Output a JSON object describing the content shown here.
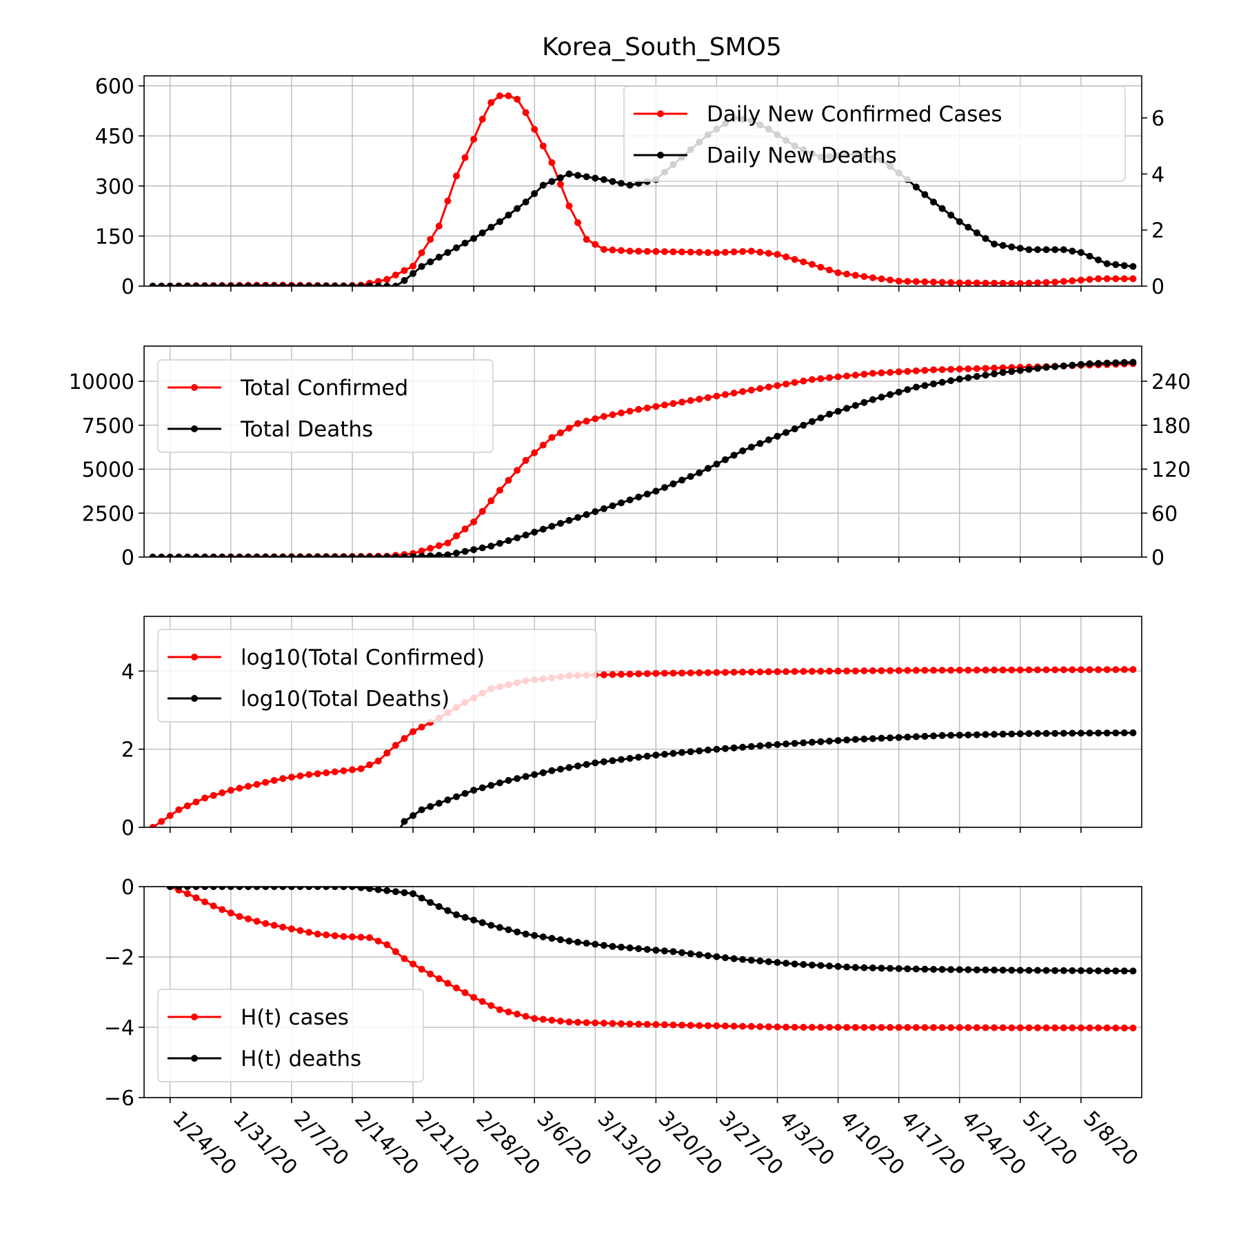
{
  "figure": {
    "title": "Korea_South_SMO5",
    "date_ticks": [
      "1/24/20",
      "1/31/20",
      "2/7/20",
      "2/14/20",
      "2/21/20",
      "2/28/20",
      "3/6/20",
      "3/13/20",
      "3/20/20",
      "3/27/20",
      "4/3/20",
      "4/10/20",
      "4/17/20",
      "4/24/20",
      "5/1/20",
      "5/8/20"
    ],
    "colors": {
      "cases": "#ff0000",
      "deaths": "#000000",
      "grid": "#b0b0b0"
    }
  },
  "chart_data": [
    {
      "type": "line",
      "title": "Korea_South_SMO5",
      "x_type": "date",
      "x_start": "2020-01-22",
      "x_end": "2020-05-14",
      "y_left": {
        "lim": [
          0,
          630
        ],
        "ticks": [
          0,
          150,
          300,
          450,
          600
        ],
        "labels": [
          "0",
          "150",
          "300",
          "450",
          "600"
        ]
      },
      "y_right": {
        "lim": [
          0,
          7.5
        ],
        "ticks": [
          0,
          2,
          4,
          6
        ],
        "labels": [
          "0",
          "2",
          "4",
          "6"
        ]
      },
      "legend": "top-right",
      "grid": true,
      "series": [
        {
          "name": "Daily New Confirmed Cases",
          "axis": "left",
          "color": "#ff0000",
          "points": [
            [
              "2020-01-22",
              0
            ],
            [
              "2020-01-30",
              2
            ],
            [
              "2020-02-06",
              3
            ],
            [
              "2020-02-13",
              1
            ],
            [
              "2020-02-15",
              3
            ],
            [
              "2020-02-18",
              20
            ],
            [
              "2020-02-21",
              60
            ],
            [
              "2020-02-24",
              180
            ],
            [
              "2020-02-26",
              330
            ],
            [
              "2020-02-28",
              440
            ],
            [
              "2020-02-29",
              500
            ],
            [
              "2020-03-01",
              550
            ],
            [
              "2020-03-02",
              570
            ],
            [
              "2020-03-03",
              570
            ],
            [
              "2020-03-04",
              560
            ],
            [
              "2020-03-05",
              520
            ],
            [
              "2020-03-06",
              470
            ],
            [
              "2020-03-08",
              370
            ],
            [
              "2020-03-10",
              240
            ],
            [
              "2020-03-12",
              140
            ],
            [
              "2020-03-14",
              110
            ],
            [
              "2020-03-17",
              105
            ],
            [
              "2020-03-24",
              102
            ],
            [
              "2020-03-27",
              100
            ],
            [
              "2020-03-31",
              105
            ],
            [
              "2020-04-03",
              95
            ],
            [
              "2020-04-07",
              65
            ],
            [
              "2020-04-10",
              40
            ],
            [
              "2020-04-14",
              25
            ],
            [
              "2020-04-17",
              15
            ],
            [
              "2020-04-24",
              10
            ],
            [
              "2020-05-01",
              8
            ],
            [
              "2020-05-05",
              12
            ],
            [
              "2020-05-10",
              22
            ],
            [
              "2020-05-14",
              22
            ]
          ]
        },
        {
          "name": "Daily New Deaths",
          "axis": "right",
          "color": "#000000",
          "points": [
            [
              "2020-01-22",
              0
            ],
            [
              "2020-02-19",
              0
            ],
            [
              "2020-02-20",
              0.2
            ],
            [
              "2020-02-22",
              0.7
            ],
            [
              "2020-02-25",
              1.2
            ],
            [
              "2020-02-28",
              1.7
            ],
            [
              "2020-03-02",
              2.3
            ],
            [
              "2020-03-05",
              3
            ],
            [
              "2020-03-07",
              3.6
            ],
            [
              "2020-03-10",
              4
            ],
            [
              "2020-03-14",
              3.8
            ],
            [
              "2020-03-17",
              3.6
            ],
            [
              "2020-03-20",
              3.8
            ],
            [
              "2020-03-23",
              4.6
            ],
            [
              "2020-03-26",
              5.4
            ],
            [
              "2020-03-29",
              6
            ],
            [
              "2020-03-31",
              5.9
            ],
            [
              "2020-04-02",
              5.6
            ],
            [
              "2020-04-05",
              5
            ],
            [
              "2020-04-08",
              4.6
            ],
            [
              "2020-04-12",
              4.7
            ],
            [
              "2020-04-15",
              4.5
            ],
            [
              "2020-04-18",
              3.8
            ],
            [
              "2020-04-21",
              3
            ],
            [
              "2020-04-24",
              2.3
            ],
            [
              "2020-04-28",
              1.5
            ],
            [
              "2020-05-02",
              1.3
            ],
            [
              "2020-05-06",
              1.3
            ],
            [
              "2020-05-08",
              1.2
            ],
            [
              "2020-05-11",
              0.8
            ],
            [
              "2020-05-14",
              0.7
            ]
          ]
        }
      ]
    },
    {
      "type": "line",
      "x_type": "date",
      "x_start": "2020-01-22",
      "x_end": "2020-05-14",
      "y_left": {
        "lim": [
          0,
          12000
        ],
        "ticks": [
          0,
          2500,
          5000,
          7500,
          10000
        ],
        "labels": [
          "0",
          "2500",
          "5000",
          "7500",
          "10000"
        ]
      },
      "y_right": {
        "lim": [
          0,
          288
        ],
        "ticks": [
          0,
          60,
          120,
          180,
          240
        ],
        "labels": [
          "0",
          "60",
          "120",
          "180",
          "240"
        ]
      },
      "legend": "upper-left",
      "grid": true,
      "series": [
        {
          "name": "Total Confirmed",
          "axis": "left",
          "color": "#ff0000",
          "points": [
            [
              "2020-01-22",
              0
            ],
            [
              "2020-02-13",
              30
            ],
            [
              "2020-02-18",
              50
            ],
            [
              "2020-02-21",
              200
            ],
            [
              "2020-02-25",
              800
            ],
            [
              "2020-02-28",
              2000
            ],
            [
              "2020-03-02",
              3800
            ],
            [
              "2020-03-05",
              5500
            ],
            [
              "2020-03-08",
              6800
            ],
            [
              "2020-03-11",
              7600
            ],
            [
              "2020-03-14",
              8000
            ],
            [
              "2020-03-18",
              8400
            ],
            [
              "2020-03-24",
              8900
            ],
            [
              "2020-03-31",
              9500
            ],
            [
              "2020-04-07",
              10100
            ],
            [
              "2020-04-14",
              10450
            ],
            [
              "2020-04-21",
              10650
            ],
            [
              "2020-04-28",
              10750
            ],
            [
              "2020-05-05",
              10850
            ],
            [
              "2020-05-14",
              11000
            ]
          ]
        },
        {
          "name": "Total Deaths",
          "axis": "right",
          "color": "#000000",
          "points": [
            [
              "2020-01-22",
              0
            ],
            [
              "2020-02-20",
              0
            ],
            [
              "2020-02-25",
              3
            ],
            [
              "2020-03-01",
              15
            ],
            [
              "2020-03-05",
              30
            ],
            [
              "2020-03-10",
              50
            ],
            [
              "2020-03-15",
              70
            ],
            [
              "2020-03-20",
              90
            ],
            [
              "2020-03-25",
              115
            ],
            [
              "2020-03-30",
              145
            ],
            [
              "2020-04-04",
              170
            ],
            [
              "2020-04-09",
              195
            ],
            [
              "2020-04-14",
              215
            ],
            [
              "2020-04-19",
              232
            ],
            [
              "2020-04-24",
              243
            ],
            [
              "2020-04-29",
              252
            ],
            [
              "2020-05-04",
              259
            ],
            [
              "2020-05-09",
              264
            ],
            [
              "2020-05-14",
              266
            ]
          ]
        }
      ]
    },
    {
      "type": "line",
      "x_type": "date",
      "x_start": "2020-01-22",
      "x_end": "2020-05-14",
      "y_left": {
        "lim": [
          0,
          5.4
        ],
        "ticks": [
          0,
          2,
          4
        ],
        "labels": [
          "0",
          "2",
          "4"
        ]
      },
      "legend": "upper-left",
      "grid": true,
      "series": [
        {
          "name": "log10(Total Confirmed)",
          "axis": "left",
          "color": "#ff0000",
          "points": [
            [
              "2020-01-22",
              0
            ],
            [
              "2020-01-25",
              0.45
            ],
            [
              "2020-01-28",
              0.75
            ],
            [
              "2020-01-31",
              0.95
            ],
            [
              "2020-02-03",
              1.1
            ],
            [
              "2020-02-06",
              1.25
            ],
            [
              "2020-02-09",
              1.35
            ],
            [
              "2020-02-12",
              1.42
            ],
            [
              "2020-02-15",
              1.5
            ],
            [
              "2020-02-17",
              1.7
            ],
            [
              "2020-02-19",
              2.1
            ],
            [
              "2020-02-21",
              2.45
            ],
            [
              "2020-02-24",
              2.8
            ],
            [
              "2020-02-27",
              3.2
            ],
            [
              "2020-03-01",
              3.55
            ],
            [
              "2020-03-05",
              3.75
            ],
            [
              "2020-03-10",
              3.88
            ],
            [
              "2020-03-20",
              3.94
            ],
            [
              "2020-04-01",
              3.98
            ],
            [
              "2020-04-20",
              4.02
            ],
            [
              "2020-05-14",
              4.04
            ]
          ]
        },
        {
          "name": "log10(Total Deaths)",
          "axis": "left",
          "color": "#000000",
          "points": [
            [
              "2020-02-19",
              -0.2
            ],
            [
              "2020-02-20",
              0.15
            ],
            [
              "2020-02-22",
              0.45
            ],
            [
              "2020-02-25",
              0.7
            ],
            [
              "2020-02-28",
              0.95
            ],
            [
              "2020-03-03",
              1.2
            ],
            [
              "2020-03-08",
              1.45
            ],
            [
              "2020-03-13",
              1.65
            ],
            [
              "2020-03-20",
              1.85
            ],
            [
              "2020-03-27",
              2.0
            ],
            [
              "2020-04-03",
              2.12
            ],
            [
              "2020-04-12",
              2.25
            ],
            [
              "2020-04-22",
              2.35
            ],
            [
              "2020-05-02",
              2.4
            ],
            [
              "2020-05-14",
              2.42
            ]
          ]
        }
      ]
    },
    {
      "type": "line",
      "x_type": "date",
      "x_start": "2020-01-22",
      "x_end": "2020-05-14",
      "y_left": {
        "lim": [
          -6,
          0
        ],
        "ticks": [
          -6,
          -4,
          -2,
          0
        ],
        "labels": [
          "−6",
          "−4",
          "−2",
          "0"
        ]
      },
      "legend": "lower-left",
      "grid": true,
      "series": [
        {
          "name": "H(t) cases",
          "axis": "left",
          "color": "#ff0000",
          "points": [
            [
              "2020-01-24",
              0
            ],
            [
              "2020-01-26",
              -0.2
            ],
            [
              "2020-01-29",
              -0.55
            ],
            [
              "2020-02-01",
              -0.85
            ],
            [
              "2020-02-04",
              -1.05
            ],
            [
              "2020-02-07",
              -1.2
            ],
            [
              "2020-02-10",
              -1.35
            ],
            [
              "2020-02-13",
              -1.42
            ],
            [
              "2020-02-16",
              -1.45
            ],
            [
              "2020-02-18",
              -1.65
            ],
            [
              "2020-02-20",
              -2.05
            ],
            [
              "2020-02-22",
              -2.35
            ],
            [
              "2020-02-25",
              -2.75
            ],
            [
              "2020-02-28",
              -3.15
            ],
            [
              "2020-03-02",
              -3.5
            ],
            [
              "2020-03-06",
              -3.75
            ],
            [
              "2020-03-10",
              -3.85
            ],
            [
              "2020-03-16",
              -3.9
            ],
            [
              "2020-03-25",
              -3.95
            ],
            [
              "2020-04-05",
              -4.0
            ],
            [
              "2020-05-14",
              -4.02
            ]
          ]
        },
        {
          "name": "H(t) deaths",
          "axis": "left",
          "color": "#000000",
          "points": [
            [
              "2020-01-24",
              0
            ],
            [
              "2020-02-14",
              0
            ],
            [
              "2020-02-21",
              -0.2
            ],
            [
              "2020-02-23",
              -0.45
            ],
            [
              "2020-02-26",
              -0.8
            ],
            [
              "2020-03-01",
              -1.1
            ],
            [
              "2020-03-05",
              -1.35
            ],
            [
              "2020-03-10",
              -1.55
            ],
            [
              "2020-03-15",
              -1.7
            ],
            [
              "2020-03-22",
              -1.85
            ],
            [
              "2020-03-29",
              -2.05
            ],
            [
              "2020-04-05",
              -2.2
            ],
            [
              "2020-04-12",
              -2.3
            ],
            [
              "2020-04-20",
              -2.35
            ],
            [
              "2020-05-01",
              -2.38
            ],
            [
              "2020-05-14",
              -2.4
            ]
          ]
        }
      ]
    }
  ]
}
